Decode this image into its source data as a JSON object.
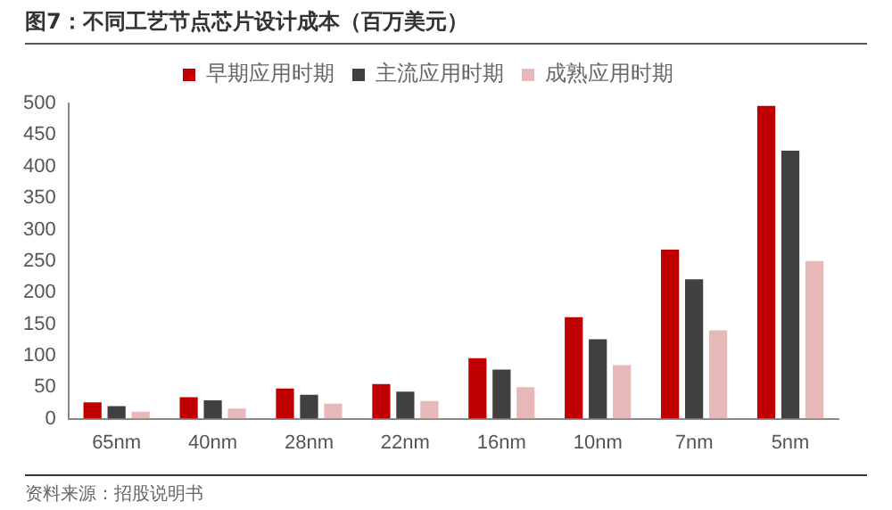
{
  "chart_data": {
    "type": "bar",
    "title": "图7：不同工艺节点芯片设计成本（百万美元）",
    "categories": [
      "65nm",
      "40nm",
      "28nm",
      "22nm",
      "16nm",
      "10nm",
      "7nm",
      "5nm"
    ],
    "series": [
      {
        "name": "早期应用时期",
        "color": "#c00000",
        "values": [
          26,
          34,
          48,
          55,
          96,
          161,
          268,
          496
        ]
      },
      {
        "name": "主流应用时期",
        "color": "#404040",
        "values": [
          20,
          29,
          38,
          43,
          78,
          126,
          221,
          425
        ]
      },
      {
        "name": "成熟应用时期",
        "color": "#e6b9b8",
        "values": [
          11,
          16,
          24,
          28,
          50,
          85,
          140,
          250
        ]
      }
    ],
    "ylim": [
      0,
      500
    ],
    "yticks": [
      0,
      50,
      100,
      150,
      200,
      250,
      300,
      350,
      400,
      450,
      500
    ],
    "grid": false,
    "legend": "top",
    "annotations": [
      "资料来源：招股说明书"
    ]
  }
}
